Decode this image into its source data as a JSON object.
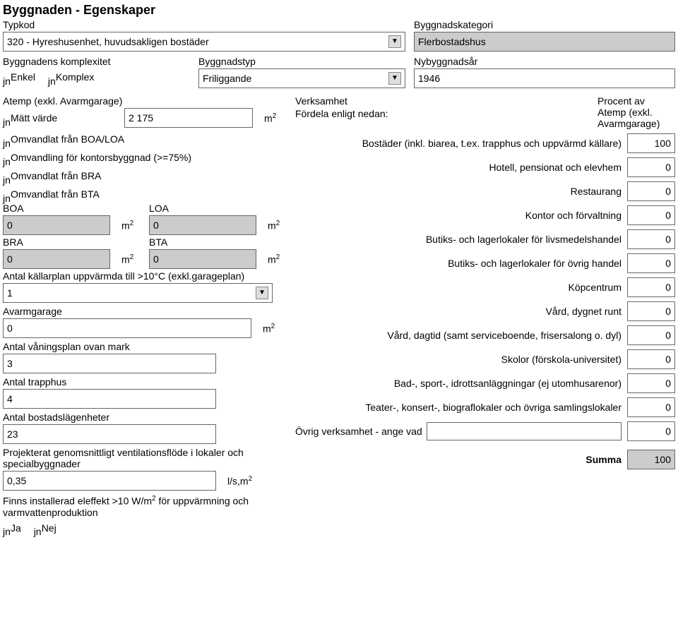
{
  "title": "Byggnaden - Egenskaper",
  "typkod": {
    "label": "Typkod",
    "value": "320 - Hyreshusenhet, huvudsakligen bostäder"
  },
  "kategori": {
    "label": "Byggnadskategori",
    "value": "Flerbostadshus"
  },
  "komplexitet": {
    "label": "Byggnadens komplexitet",
    "enkel": "Enkel",
    "komplex": "Komplex"
  },
  "byggnadstyp": {
    "label": "Byggnadstyp",
    "value": "Friliggande"
  },
  "nybyggnadsar": {
    "label": "Nybyggnadsår",
    "value": "1946"
  },
  "atemp": {
    "label": "Atemp (exkl. Avarmgarage)",
    "matt": "Mätt värde",
    "value": "2 175",
    "unit_html": "m²",
    "boa_loa": "Omvandlat från BOA/LOA",
    "kontor": "Omvandling för kontorsbyggnad (>=75%)",
    "bra": "Omvandlat från BRA",
    "bta": "Omvandlat från BTA"
  },
  "boa": {
    "lbl": "BOA",
    "val": "0"
  },
  "loa": {
    "lbl": "LOA",
    "val": "0"
  },
  "bra_f": {
    "lbl": "BRA",
    "val": "0"
  },
  "bta_f": {
    "lbl": "BTA",
    "val": "0"
  },
  "kallarplan": {
    "lbl": "Antal källarplan uppvärmda till >10°C (exkl.garageplan)",
    "val": "1"
  },
  "avarmgarage": {
    "lbl": "Avarmgarage",
    "val": "0"
  },
  "vaningsplan": {
    "lbl": "Antal våningsplan ovan mark",
    "val": "3"
  },
  "trapphus": {
    "lbl": "Antal trapphus",
    "val": "4"
  },
  "lagenheter": {
    "lbl": "Antal bostadslägenheter",
    "val": "23"
  },
  "ventilation": {
    "lbl": "Projekterat genomsnittligt ventilationsflöde i lokaler och specialbyggnader",
    "val": "0,35",
    "unit": "l/s,m²"
  },
  "eleffekt": {
    "lbl": "Finns installerad eleffekt >10 W/m² för uppvärmning och varmvattenproduktion",
    "ja": "Ja",
    "nej": "Nej"
  },
  "verksamhet": {
    "head1": "Verksamhet",
    "head2": "Fördela enligt nedan:",
    "pct_head": "Procent av Atemp (exkl. Avarmgarage)",
    "items": [
      {
        "label": "Bostäder (inkl. biarea, t.ex. trapphus och uppvärmd källare)",
        "val": "100"
      },
      {
        "label": "Hotell, pensionat och elevhem",
        "val": "0"
      },
      {
        "label": "Restaurang",
        "val": "0"
      },
      {
        "label": "Kontor och förvaltning",
        "val": "0"
      },
      {
        "label": "Butiks- och lagerlokaler för livsmedelshandel",
        "val": "0"
      },
      {
        "label": "Butiks- och lagerlokaler för övrig handel",
        "val": "0"
      },
      {
        "label": "Köpcentrum",
        "val": "0"
      },
      {
        "label": "Vård, dygnet runt",
        "val": "0"
      },
      {
        "label": "Vård, dagtid (samt serviceboende, frisersalong o. dyl)",
        "val": "0"
      },
      {
        "label": "Skolor (förskola-universitet)",
        "val": "0"
      },
      {
        "label": "Bad-, sport-, idrottsanläggningar (ej utomhusarenor)",
        "val": "0"
      },
      {
        "label": "Teater-, konsert-, biograflokaler och övriga samlingslokaler",
        "val": "0"
      }
    ],
    "ovrig_label": "Övrig verksamhet - ange vad",
    "ovrig_text": "",
    "ovrig_val": "0",
    "summa_label": "Summa",
    "summa_val": "100"
  },
  "colors": {
    "border": "#666666",
    "shade": "#cccccc"
  }
}
